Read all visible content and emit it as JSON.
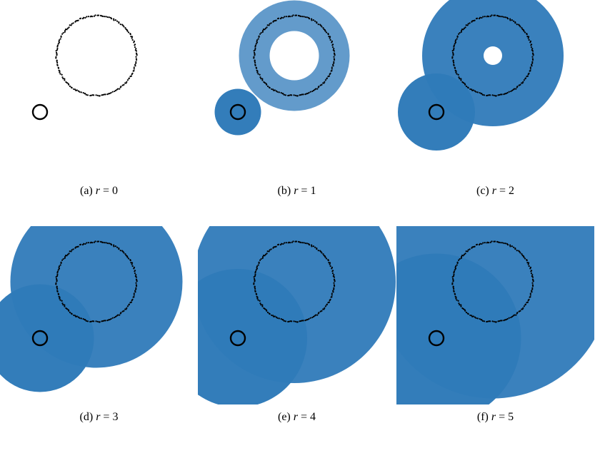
{
  "figure": {
    "fill_color": "#2f7ab9",
    "point_color": "#000000",
    "panels": [
      {
        "label": "(a)",
        "var": "r",
        "eq": "=",
        "value": "0",
        "radius": 0
      },
      {
        "label": "(b)",
        "var": "r",
        "eq": "=",
        "value": "1",
        "radius": 1
      },
      {
        "label": "(c)",
        "var": "r",
        "eq": "=",
        "value": "2",
        "radius": 2
      },
      {
        "label": "(d)",
        "var": "r",
        "eq": "=",
        "value": "3",
        "radius": 3
      },
      {
        "label": "(e)",
        "var": "r",
        "eq": "=",
        "value": "4",
        "radius": 4
      },
      {
        "label": "(f)",
        "var": "r",
        "eq": "=",
        "value": "5",
        "radius": 5
      }
    ]
  }
}
